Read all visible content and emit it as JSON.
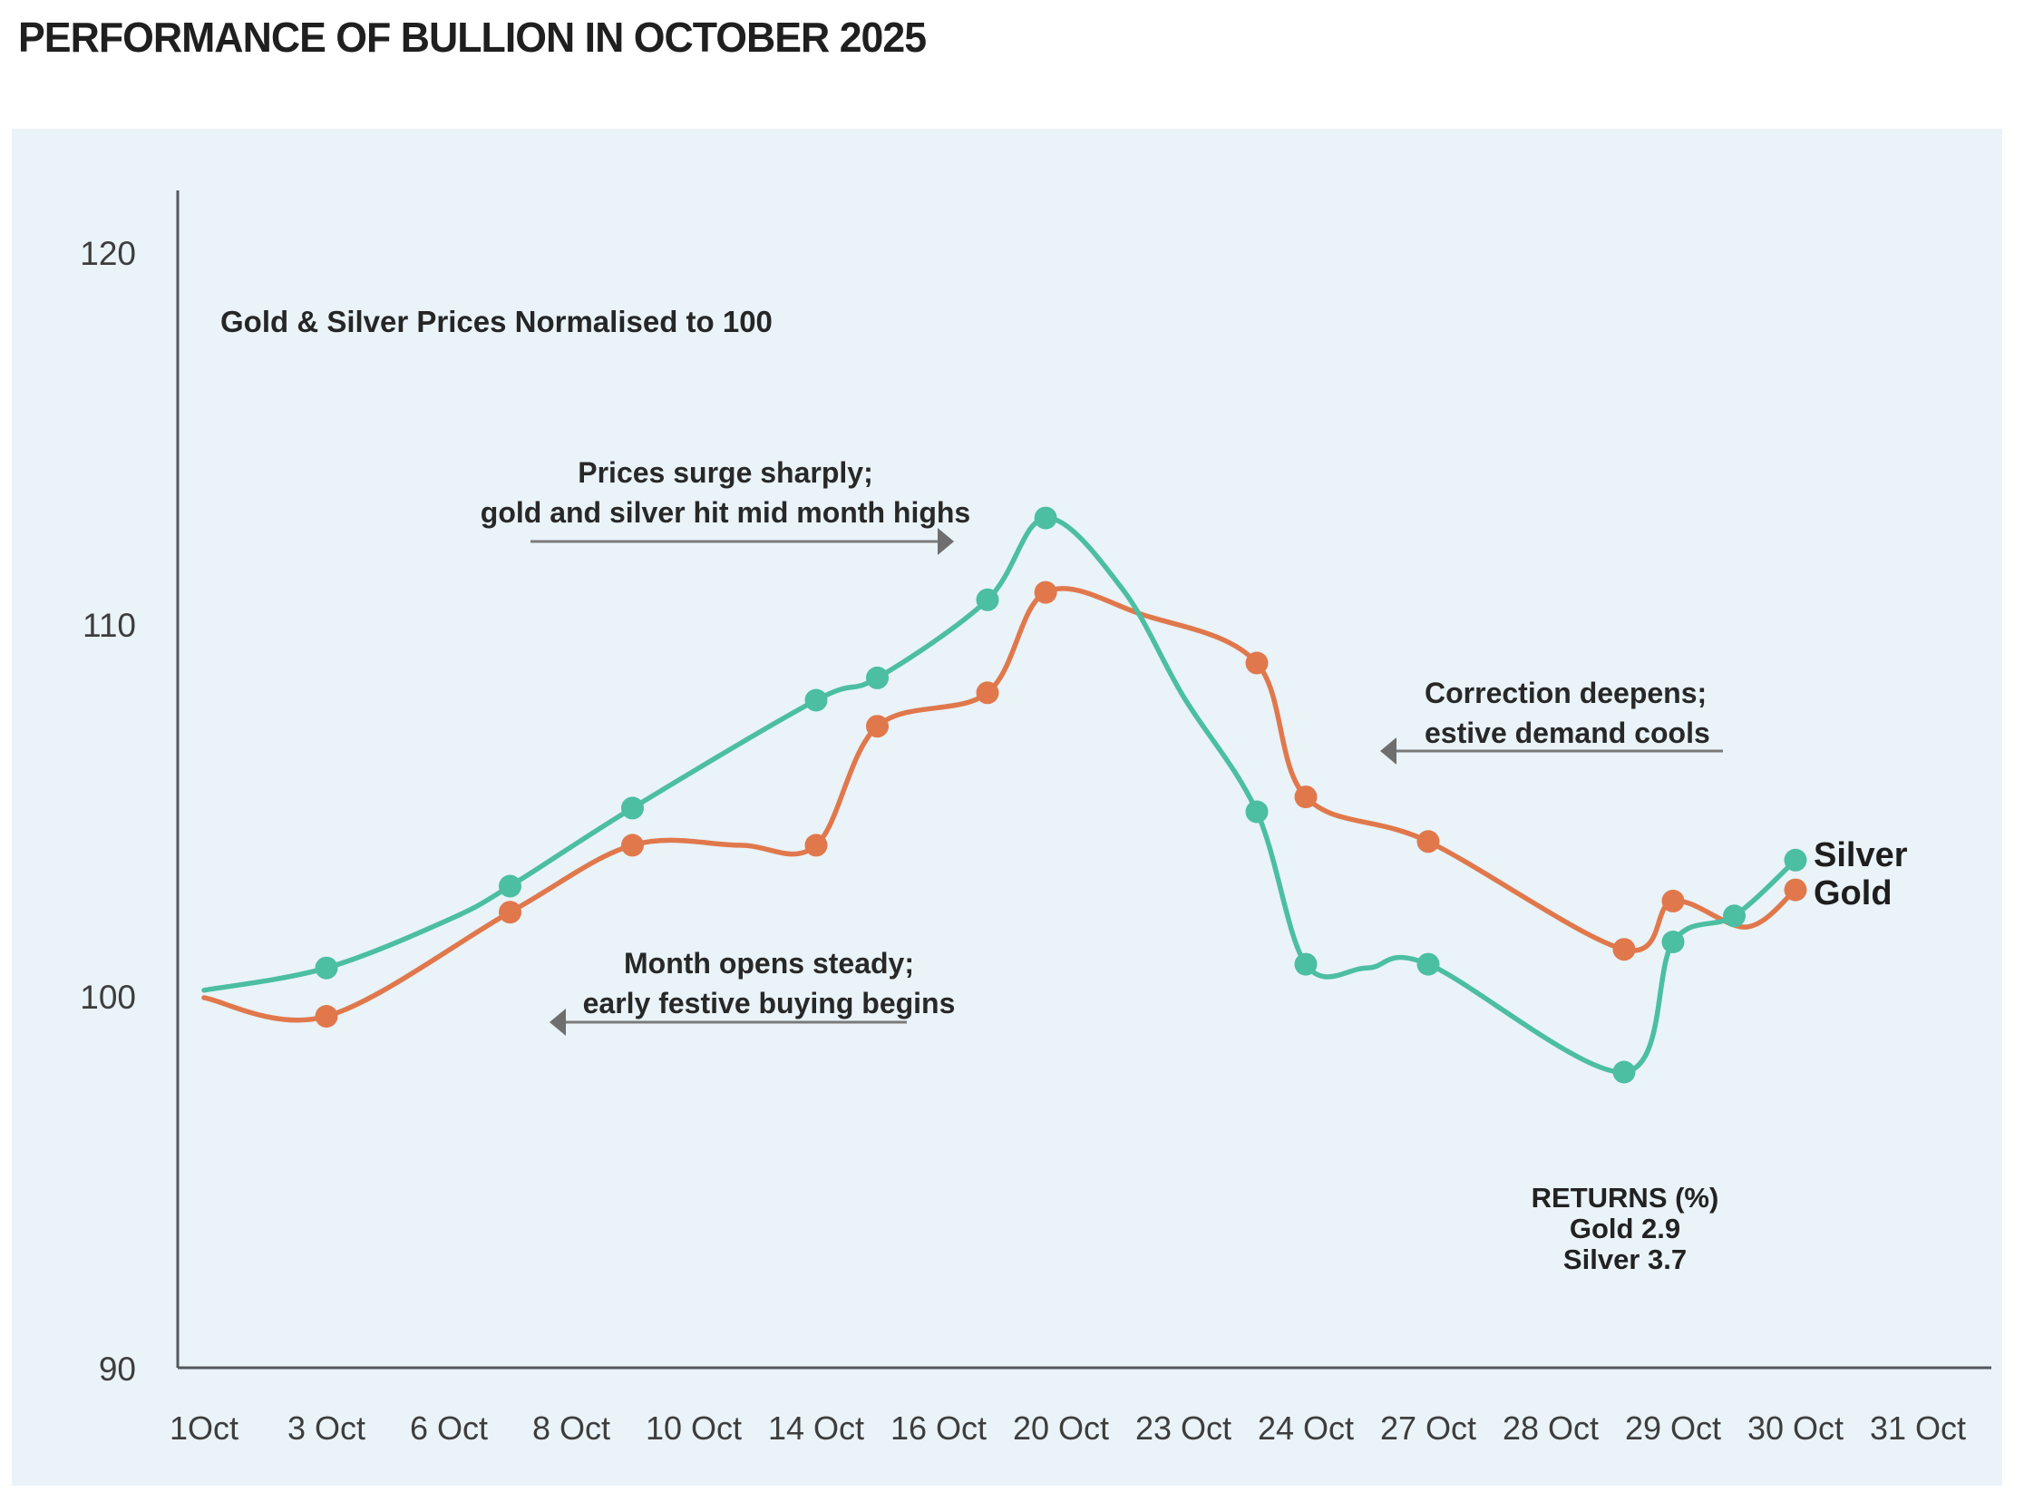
{
  "title": "PERFORMANCE OF BULLION IN OCTOBER 2025",
  "chart_data": {
    "type": "line",
    "title": "PERFORMANCE OF BULLION IN OCTOBER 2025",
    "subtitle": "Gold & Silver Prices Normalised to 100",
    "x_axis": {
      "unit": "date, October 2025",
      "tick_labels": [
        "1Oct",
        "3 Oct",
        "6 Oct",
        "8 Oct",
        "10 Oct",
        "14 Oct",
        "16 Oct",
        "20 Oct",
        "23 Oct",
        "24 Oct",
        "27 Oct",
        "28 Oct",
        "29 Oct",
        "30 Oct",
        "31 Oct"
      ],
      "tick_days": [
        1,
        3,
        6,
        8,
        10,
        14,
        16,
        20,
        23,
        24,
        27,
        28,
        29,
        30,
        31
      ]
    },
    "y_axis": {
      "ticks": [
        120,
        110,
        100,
        90
      ],
      "range": [
        90,
        121.7
      ],
      "gridlines": false
    },
    "legend": {
      "silver": "Silver",
      "gold": "Gold",
      "position": "right-of-line-end"
    },
    "point_format": [
      "day",
      "value",
      "has_marker"
    ],
    "series": [
      {
        "name": "Gold",
        "color": "#e0784c",
        "return_pct": 2.9,
        "points": [
          [
            1,
            100.0,
            0
          ],
          [
            3,
            99.5,
            1
          ],
          [
            7,
            102.3,
            1
          ],
          [
            9,
            104.1,
            1
          ],
          [
            11.5,
            104.1,
            0
          ],
          [
            14,
            104.1,
            1
          ],
          [
            15,
            107.3,
            1
          ],
          [
            17.6,
            108.2,
            1
          ],
          [
            19.5,
            110.9,
            1
          ],
          [
            22,
            110.3,
            0
          ],
          [
            23.6,
            109.0,
            1
          ],
          [
            24,
            105.4,
            1
          ],
          [
            27,
            104.2,
            1
          ],
          [
            28.6,
            101.3,
            1
          ],
          [
            29,
            102.6,
            1
          ],
          [
            29.6,
            101.9,
            0
          ],
          [
            30,
            102.9,
            1
          ]
        ]
      },
      {
        "name": "Silver",
        "color": "#4cbea2",
        "return_pct": 3.7,
        "points": [
          [
            1,
            100.2,
            0
          ],
          [
            3,
            100.8,
            1
          ],
          [
            6,
            102.1,
            0
          ],
          [
            7,
            103.0,
            1
          ],
          [
            9,
            105.1,
            1
          ],
          [
            14,
            108.0,
            1
          ],
          [
            15,
            108.6,
            1
          ],
          [
            17.6,
            110.7,
            1
          ],
          [
            19.5,
            112.9,
            1
          ],
          [
            21.5,
            111.0,
            0
          ],
          [
            23,
            108.1,
            0
          ],
          [
            23.6,
            105.0,
            1
          ],
          [
            24,
            100.9,
            1
          ],
          [
            25.5,
            100.8,
            0
          ],
          [
            27,
            100.9,
            1
          ],
          [
            28.6,
            98.0,
            1
          ],
          [
            29,
            101.5,
            1
          ],
          [
            29.5,
            102.2,
            1
          ],
          [
            30,
            103.7,
            1
          ]
        ]
      }
    ],
    "annotations": [
      {
        "line1": "Prices surge sharply;",
        "line2": "gold and silver hit mid month highs",
        "arrow_direction": "right"
      },
      {
        "line1": "Correction deepens;",
        "line2": "estive demand cools",
        "arrow_direction": "left"
      },
      {
        "line1": "Month opens steady;",
        "line2": "early festive buying begins",
        "arrow_direction": "left"
      }
    ],
    "returns_note": {
      "heading": "RETURNS (%)",
      "gold_line": "Gold 2.9",
      "silver_line": "Silver 3.7"
    },
    "colors": {
      "silver": "#4cbea2",
      "gold": "#e0784c",
      "panel_background": "#e9f3f8",
      "axis": "#54585b",
      "arrow": "#7a7a7a",
      "text": "#2a2a2a"
    }
  }
}
